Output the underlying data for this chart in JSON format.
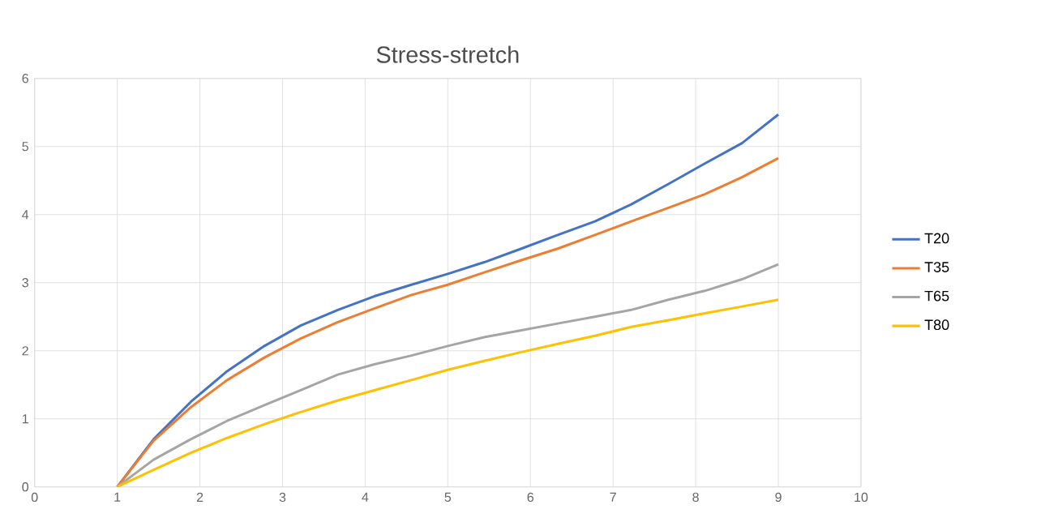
{
  "chart_data": {
    "type": "line",
    "title": "Stress-stretch",
    "x": [
      1,
      1.44,
      1.89,
      2.33,
      2.78,
      3.22,
      3.67,
      4.11,
      4.56,
      5,
      5.44,
      5.89,
      6.33,
      6.78,
      7.22,
      7.67,
      8.11,
      8.56,
      9
    ],
    "series": [
      {
        "name": "T20",
        "color": "#4472c4",
        "values": [
          0,
          0.7,
          1.25,
          1.7,
          2.07,
          2.37,
          2.6,
          2.8,
          2.97,
          3.13,
          3.3,
          3.5,
          3.7,
          3.9,
          4.15,
          4.45,
          4.75,
          5.05,
          5.47
        ]
      },
      {
        "name": "T35",
        "color": "#ed7d31",
        "values": [
          0,
          0.68,
          1.17,
          1.57,
          1.9,
          2.18,
          2.42,
          2.62,
          2.82,
          2.97,
          3.15,
          3.33,
          3.5,
          3.7,
          3.9,
          4.1,
          4.3,
          4.55,
          4.83
        ]
      },
      {
        "name": "T65",
        "color": "#a5a5a5",
        "values": [
          0,
          0.4,
          0.7,
          0.97,
          1.2,
          1.42,
          1.65,
          1.8,
          1.93,
          2.07,
          2.2,
          2.3,
          2.4,
          2.5,
          2.6,
          2.75,
          2.88,
          3.05,
          3.27
        ]
      },
      {
        "name": "T80",
        "color": "#ffc000",
        "values": [
          0,
          0.25,
          0.5,
          0.72,
          0.92,
          1.1,
          1.27,
          1.42,
          1.57,
          1.72,
          1.85,
          1.98,
          2.1,
          2.22,
          2.35,
          2.45,
          2.55,
          2.65,
          2.75
        ]
      }
    ],
    "xlim": [
      0,
      10
    ],
    "ylim": [
      0,
      6
    ],
    "xticks": [
      0,
      1,
      2,
      3,
      4,
      5,
      6,
      7,
      8,
      9,
      10
    ],
    "yticks": [
      0,
      1,
      2,
      3,
      4,
      5,
      6
    ],
    "grid": true,
    "legend": "right",
    "marker": "none",
    "line_style": "solid"
  }
}
